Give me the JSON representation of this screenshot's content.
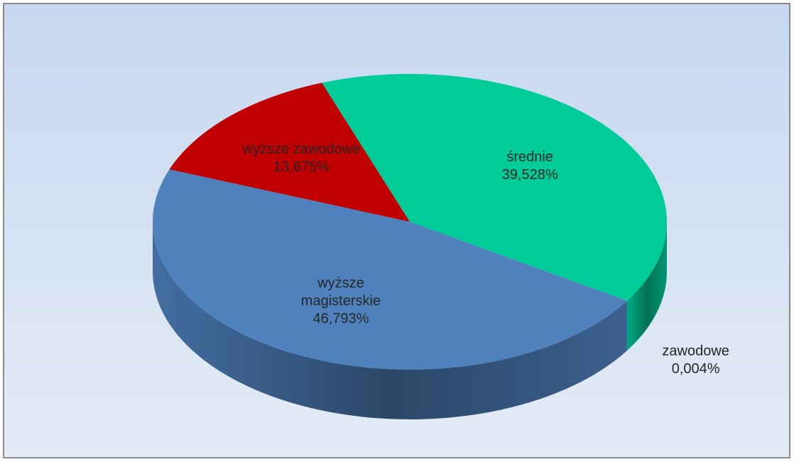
{
  "chart_data": {
    "type": "pie",
    "categories": [
      "średnie",
      "zawodowe",
      "wyższe magisterskie",
      "wyższe zawodowe"
    ],
    "values": [
      39.528,
      0.004,
      46.793,
      13.675
    ],
    "value_labels": [
      "39,528%",
      "0,004%",
      "46,793%",
      "13,675%"
    ],
    "colors": [
      "#00cc99",
      "#2f4f7f",
      "#4f81bd",
      "#c00000"
    ]
  }
}
